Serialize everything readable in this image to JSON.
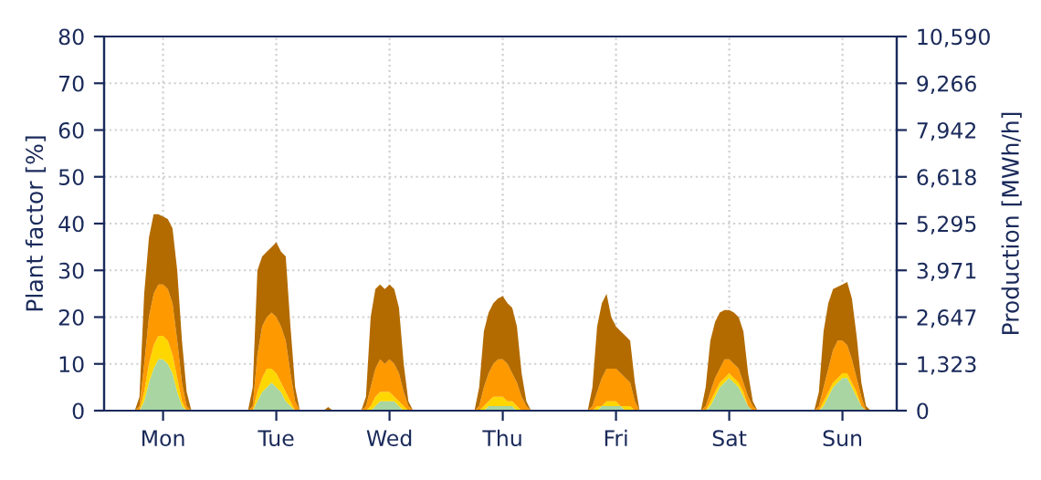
{
  "chart_data": {
    "type": "area",
    "stacked": true,
    "ylabel": "Plant factor [%]",
    "y2label": "Production [MWh/h]",
    "categories": [
      null,
      null,
      null,
      null,
      null,
      null,
      null,
      null,
      null,
      null,
      null,
      null,
      "Mon",
      null,
      null,
      null,
      null,
      null,
      null,
      null,
      null,
      null,
      null,
      null,
      null,
      null,
      null,
      null,
      null,
      null,
      null,
      null,
      null,
      null,
      null,
      null,
      "Tue",
      null,
      null,
      null,
      null,
      null,
      null,
      null,
      null,
      null,
      null,
      null,
      null,
      null,
      null,
      null,
      null,
      null,
      null,
      null,
      null,
      null,
      null,
      null,
      "Wed",
      null,
      null,
      null,
      null,
      null,
      null,
      null,
      null,
      null,
      null,
      null,
      null,
      null,
      null,
      null,
      null,
      null,
      null,
      null,
      null,
      null,
      null,
      null,
      "Thu",
      null,
      null,
      null,
      null,
      null,
      null,
      null,
      null,
      null,
      null,
      null,
      null,
      null,
      null,
      null,
      null,
      null,
      null,
      null,
      null,
      null,
      null,
      null,
      "Fri",
      null,
      null,
      null,
      null,
      null,
      null,
      null,
      null,
      null,
      null,
      null,
      null,
      null,
      null,
      null,
      null,
      null,
      null,
      null,
      null,
      null,
      null,
      null,
      "Sat",
      null,
      null,
      null,
      null,
      null,
      null,
      null,
      null,
      null,
      null,
      null,
      null,
      null,
      null,
      null,
      null,
      null,
      null,
      null,
      null,
      null,
      null,
      null,
      "Sun",
      null,
      null,
      null,
      null,
      null,
      null,
      null,
      null,
      null,
      null,
      null
    ],
    "series": [
      {
        "color": "#a8d5a2",
        "values": [
          0,
          0,
          0,
          0,
          0,
          0,
          0,
          0,
          2,
          6,
          9,
          11,
          11,
          10,
          8,
          4,
          1,
          0,
          0,
          0,
          0,
          0,
          0,
          0,
          0,
          0,
          0,
          0,
          0,
          0,
          0,
          0,
          2,
          4,
          5,
          6,
          5,
          4,
          2,
          1,
          0,
          0,
          0,
          0,
          0,
          0,
          0,
          0,
          0,
          0,
          0,
          0,
          0,
          0,
          0,
          0,
          0,
          1,
          2,
          2,
          2,
          2,
          1,
          0,
          0,
          0,
          0,
          0,
          0,
          0,
          0,
          0,
          0,
          0,
          0,
          0,
          0,
          0,
          0,
          0,
          0,
          1,
          1,
          1,
          1,
          1,
          1,
          0,
          0,
          0,
          0,
          0,
          0,
          0,
          0,
          0,
          0,
          0,
          0,
          0,
          0,
          0,
          0,
          0,
          0,
          1,
          1,
          1,
          1,
          1,
          0,
          0,
          0,
          0,
          0,
          0,
          0,
          0,
          0,
          0,
          0,
          0,
          0,
          0,
          0,
          0,
          0,
          0,
          1,
          3,
          5,
          6,
          7,
          6,
          5,
          3,
          1,
          0,
          0,
          0,
          0,
          0,
          0,
          0,
          0,
          0,
          0,
          0,
          0,
          0,
          0,
          0,
          1,
          3,
          5,
          6,
          7,
          7,
          5,
          3,
          1,
          0,
          0,
          0,
          0,
          0,
          0,
          0
        ]
      },
      {
        "color": "#ffd700",
        "values": [
          0,
          0,
          0,
          0,
          0,
          0,
          0,
          0,
          2,
          4,
          5,
          5,
          5,
          5,
          4,
          3,
          1,
          0,
          0,
          0,
          0,
          0,
          0,
          0,
          0,
          0,
          0,
          0,
          0,
          0,
          0,
          0,
          2,
          3,
          4,
          3,
          3,
          2,
          2,
          1,
          0,
          0,
          0,
          0,
          0,
          0,
          0,
          0,
          0,
          0,
          0,
          0,
          0,
          0,
          0,
          0,
          1,
          2,
          2,
          2,
          2,
          1,
          1,
          1,
          0,
          0,
          0,
          0,
          0,
          0,
          0,
          0,
          0,
          0,
          0,
          0,
          0,
          0,
          0,
          0,
          1,
          1,
          2,
          2,
          2,
          1,
          1,
          1,
          0,
          0,
          0,
          0,
          0,
          0,
          0,
          0,
          0,
          0,
          0,
          0,
          0,
          0,
          0,
          0,
          1,
          0,
          1,
          1,
          1,
          0,
          1,
          1,
          0,
          0,
          0,
          0,
          0,
          0,
          0,
          0,
          0,
          0,
          0,
          0,
          0,
          0,
          0,
          0,
          1,
          1,
          1,
          1,
          1,
          1,
          1,
          1,
          0,
          0,
          0,
          0,
          0,
          0,
          0,
          0,
          0,
          0,
          0,
          0,
          0,
          0,
          0,
          0,
          1,
          1,
          1,
          1,
          1,
          1,
          1,
          1,
          0,
          0,
          0,
          0,
          0,
          0,
          0,
          0
        ]
      },
      {
        "color": "#ff9900",
        "values": [
          0,
          0,
          0,
          0,
          0,
          0,
          0,
          1,
          6,
          10,
          11,
          11,
          11,
          11,
          11,
          8,
          4,
          1,
          0,
          0,
          0,
          0,
          0,
          0,
          0,
          0,
          0,
          0,
          0,
          0,
          0,
          1,
          8,
          11,
          11,
          12,
          12,
          12,
          11,
          6,
          2,
          0,
          0,
          0,
          0,
          0,
          0,
          0,
          0,
          0,
          0,
          0,
          0,
          0,
          0,
          1,
          4,
          6,
          7,
          6,
          7,
          7,
          6,
          3,
          1,
          0,
          0,
          0,
          0,
          0,
          0,
          0,
          0,
          0,
          0,
          0,
          0,
          0,
          0,
          1,
          4,
          6,
          7,
          8,
          8,
          8,
          6,
          5,
          3,
          1,
          0,
          0,
          0,
          0,
          0,
          0,
          0,
          0,
          0,
          0,
          0,
          0,
          0,
          1,
          3,
          6,
          7,
          7,
          7,
          7,
          6,
          5,
          2,
          0,
          0,
          0,
          0,
          0,
          0,
          0,
          0,
          0,
          0,
          0,
          0,
          0,
          0,
          1,
          2,
          3,
          3,
          4,
          3,
          3,
          3,
          2,
          2,
          1,
          0,
          0,
          0,
          0,
          0,
          0,
          0,
          0,
          0,
          0,
          0,
          0,
          0,
          1,
          3,
          5,
          7,
          8,
          7,
          6,
          5,
          3,
          2,
          0,
          0,
          0,
          0,
          0,
          0,
          0
        ]
      },
      {
        "color": "#b36b00",
        "values": [
          0,
          0,
          0,
          0,
          0,
          0,
          0,
          2,
          15,
          17,
          17,
          15,
          14.5,
          15,
          16,
          15,
          9,
          3,
          0,
          0,
          0,
          0,
          0,
          0,
          0,
          0,
          0,
          0,
          0,
          0,
          0,
          4,
          18,
          15,
          14,
          14,
          16,
          16,
          18,
          10,
          3,
          0,
          0,
          0,
          0,
          0,
          0,
          0.8,
          0,
          0,
          0,
          0,
          0,
          0,
          0,
          2,
          15,
          17,
          16,
          16,
          16,
          16,
          14,
          6,
          1,
          0,
          0,
          0,
          0,
          0,
          0,
          0,
          0,
          0,
          0,
          0,
          0,
          0,
          0,
          4,
          12,
          13,
          13,
          13,
          13.5,
          13,
          14,
          12,
          5,
          1,
          0,
          0,
          0,
          0,
          0,
          0,
          0,
          0,
          0,
          0,
          0,
          0,
          0,
          4,
          14,
          16,
          16,
          11,
          9,
          9,
          9,
          9,
          4,
          0,
          0,
          0,
          0,
          0,
          0,
          0,
          0,
          0,
          0,
          0,
          0,
          0,
          0,
          4,
          11,
          12,
          12,
          10.5,
          10.5,
          11,
          11,
          11,
          5,
          1,
          0,
          0,
          0,
          0,
          0,
          0,
          0,
          0,
          0,
          0,
          0,
          0,
          0,
          3,
          12,
          14,
          13,
          11.5,
          12,
          13.5,
          13,
          9,
          3,
          1,
          0,
          0,
          0,
          0,
          0,
          0
        ]
      }
    ],
    "ylim": [
      0,
      80
    ],
    "yticks": [
      0,
      10,
      20,
      30,
      40,
      50,
      60,
      70,
      80
    ],
    "y2lim": [
      0,
      10590
    ],
    "y2ticks": [
      0,
      {
        "value": 1323,
        "label": "1,323"
      },
      {
        "value": 2647,
        "label": "2,647"
      },
      {
        "value": 3971,
        "label": "3,971"
      },
      {
        "value": 5295,
        "label": "5,295"
      },
      {
        "value": 6618,
        "label": "6,618"
      },
      {
        "value": 7942,
        "label": "7,942"
      },
      {
        "value": 9266,
        "label": "9,266"
      },
      {
        "value": 10590,
        "label": "10,590"
      }
    ],
    "grid": true
  }
}
